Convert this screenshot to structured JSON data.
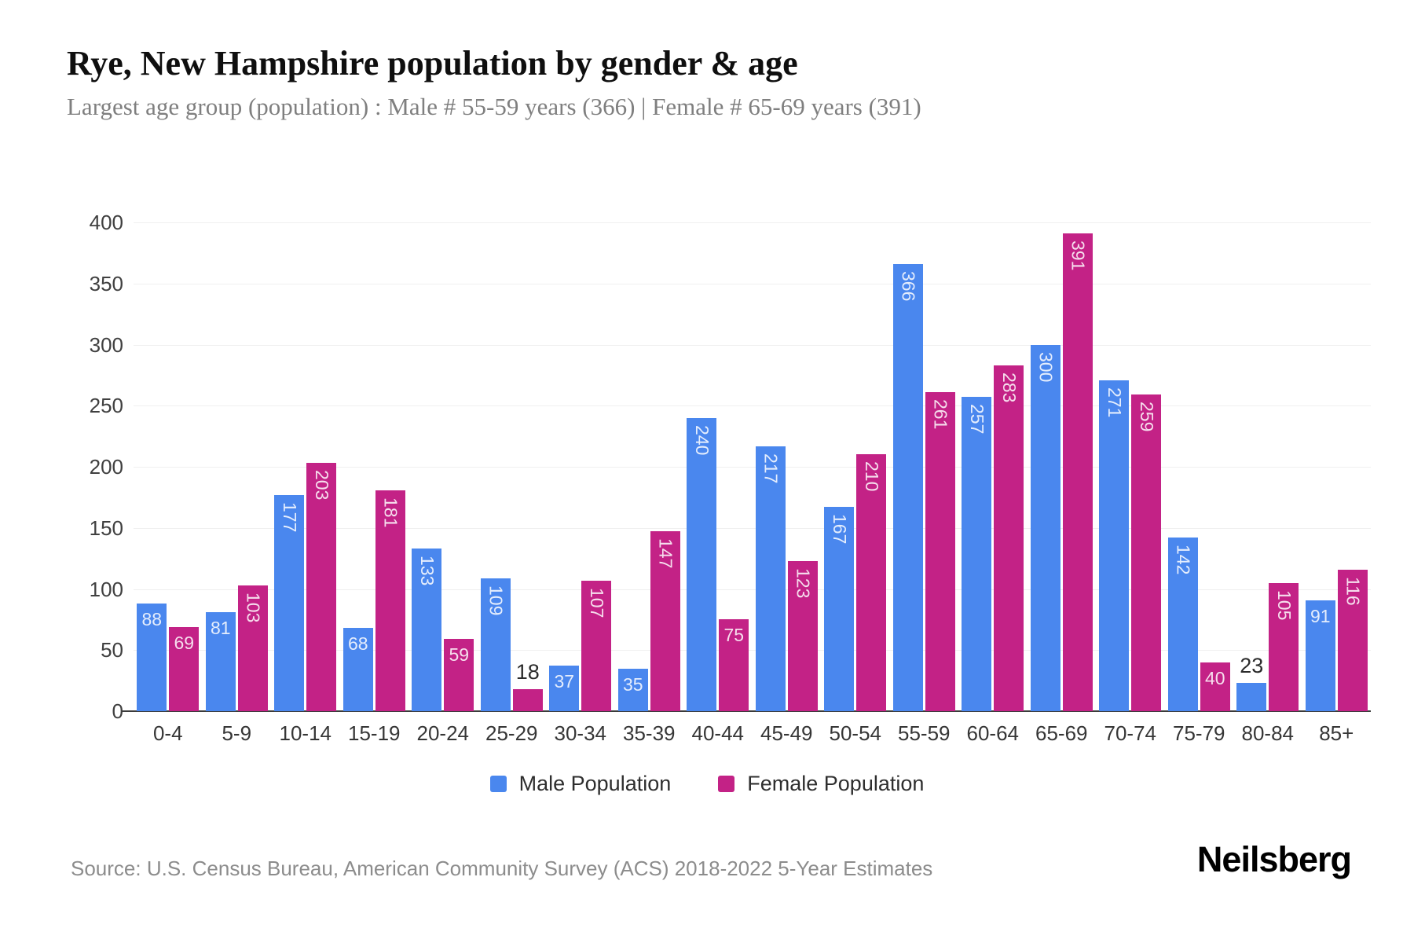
{
  "page": {
    "title": "Rye, New Hampshire population by gender & age",
    "subtitle": "Largest age group (population) : Male # 55-59 years (366) | Female # 65-69 years (391)",
    "source": "Source: U.S. Census Bureau, American Community Survey (ACS) 2018-2022 5-Year Estimates",
    "brand": "Neilsberg"
  },
  "colors": {
    "male": "#4a87ee",
    "female": "#c32286",
    "bar_label_inside": "rgba(255,255,255,0.85)",
    "bar_label_outside": "#2b2b2b",
    "gridline": "#efefef",
    "axis_line": "#3b3b3b",
    "tick_label": "#404040"
  },
  "chart_data": {
    "type": "bar",
    "title": "Rye, New Hampshire population by gender & age",
    "categories": [
      "0-4",
      "5-9",
      "10-14",
      "15-19",
      "20-24",
      "25-29",
      "30-34",
      "35-39",
      "40-44",
      "45-49",
      "50-54",
      "55-59",
      "60-64",
      "65-69",
      "70-74",
      "75-79",
      "80-84",
      "85+"
    ],
    "series": [
      {
        "name": "Male Population",
        "color_key": "male",
        "values": [
          88,
          81,
          177,
          68,
          133,
          109,
          37,
          35,
          240,
          217,
          167,
          366,
          257,
          300,
          271,
          142,
          23,
          91
        ]
      },
      {
        "name": "Female Population",
        "color_key": "female",
        "values": [
          69,
          103,
          203,
          181,
          59,
          18,
          107,
          147,
          75,
          123,
          210,
          261,
          283,
          391,
          259,
          40,
          105,
          116
        ]
      }
    ],
    "xlabel": "",
    "ylabel": "",
    "ylim": [
      0,
      400
    ],
    "ytick_step": 50,
    "grid": "horizontal",
    "legend_position": "bottom"
  }
}
